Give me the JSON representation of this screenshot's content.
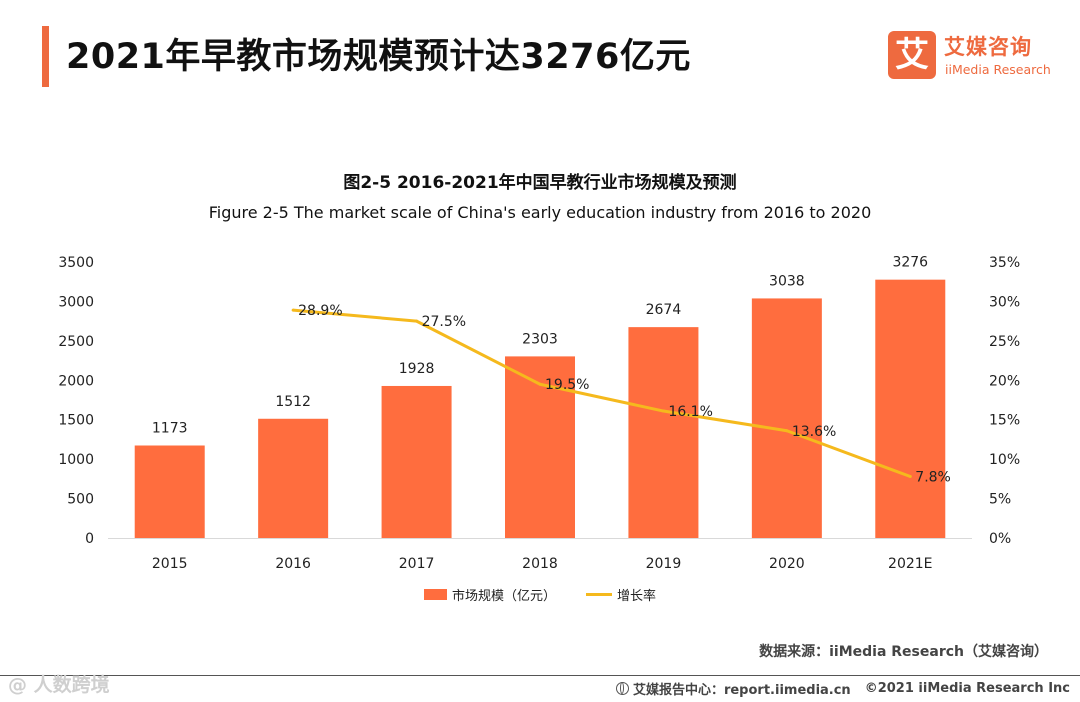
{
  "header": {
    "title": "2021年早教市场规模预计达3276亿元"
  },
  "logo": {
    "mark": "艾",
    "name_cn": "艾媒咨询",
    "name_en": "iiMedia Research"
  },
  "chart_data": {
    "type": "bar",
    "title": "图2-5 2016-2021年中国早教行业市场规模及预测",
    "subtitle": "Figure 2-5 The market scale of China's early education industry from 2016 to 2020",
    "categories": [
      "2015",
      "2016",
      "2017",
      "2018",
      "2019",
      "2020",
      "2021E"
    ],
    "series": [
      {
        "name": "市场规模（亿元）",
        "type": "bar",
        "axis": "left",
        "color": "#ff6d3e",
        "values": [
          1173,
          1512,
          1928,
          2303,
          2674,
          3038,
          3276
        ]
      },
      {
        "name": "增长率",
        "type": "line",
        "axis": "right",
        "color": "#f5b91d",
        "values": [
          null,
          28.9,
          27.5,
          19.5,
          16.1,
          13.6,
          7.8
        ]
      }
    ],
    "y_left": {
      "min": 0,
      "max": 3500,
      "ticks": [
        "0",
        "500",
        "1000",
        "1500",
        "2000",
        "2500",
        "3000",
        "3500"
      ]
    },
    "y_right": {
      "min": 0,
      "max": 35,
      "ticks": [
        "0%",
        "5%",
        "10%",
        "15%",
        "20%",
        "25%",
        "30%",
        "35%"
      ]
    },
    "legend_position": "bottom",
    "grid": false
  },
  "source": "数据来源：iiMedia Research（艾媒咨询）",
  "footer": {
    "report_center": "艾媒报告中心：report.iimedia.cn",
    "copyright": "©2021  iiMedia Research  Inc"
  },
  "watermark": "@ 人数跨境"
}
